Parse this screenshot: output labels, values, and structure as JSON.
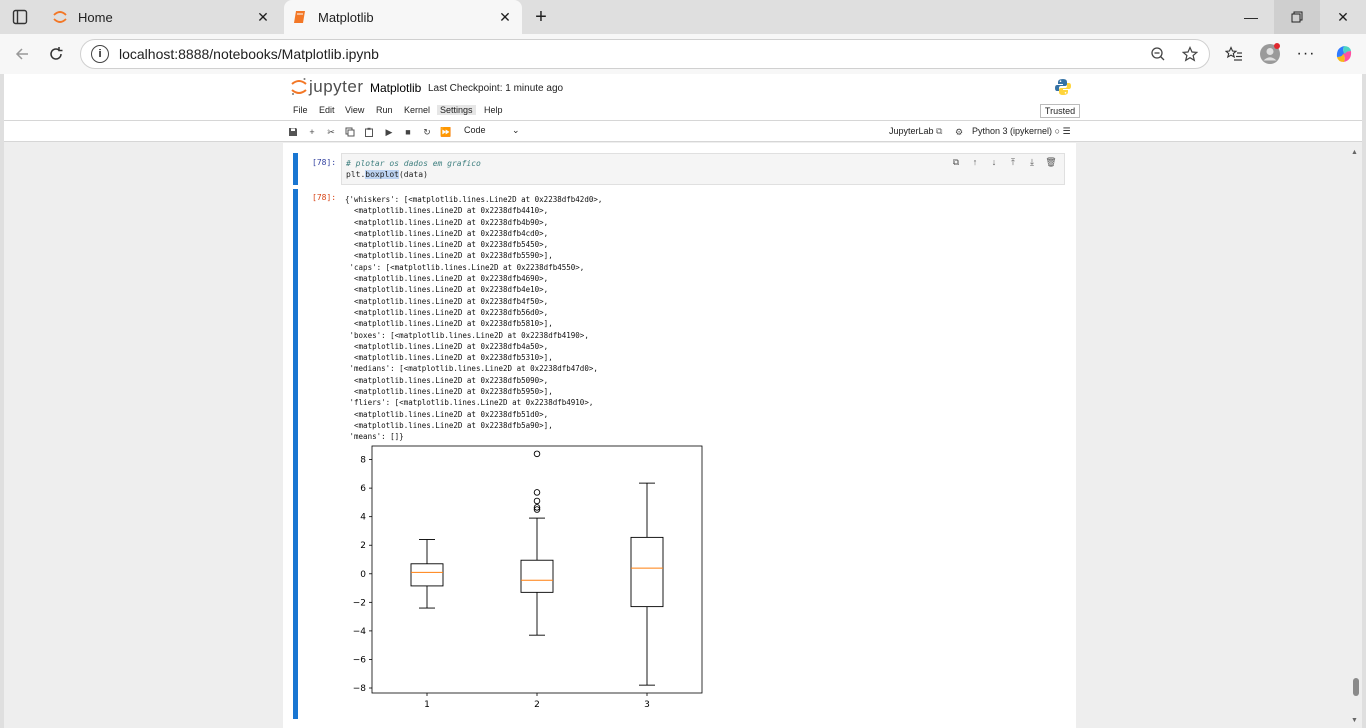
{
  "browser": {
    "tabs": [
      {
        "title": "Home",
        "active": false
      },
      {
        "title": "Matplotlib",
        "active": true
      }
    ],
    "url": "localhost:8888/notebooks/Matplotlib.ipynb"
  },
  "jupyter": {
    "logo_text": "jupyter",
    "notebook_title": "Matplotlib",
    "checkpoint": "Last Checkpoint: 1 minute ago",
    "menu": [
      "File",
      "Edit",
      "View",
      "Run",
      "Kernel",
      "Settings",
      "Help"
    ],
    "trusted": "Trusted",
    "cell_type": "Code",
    "jupyterlab_link": "JupyterLab",
    "kernel_name": "Python 3 (ipykernel)"
  },
  "cell": {
    "in_prompt": "[78]:",
    "comment": "# plotar os dados em grafico",
    "code_prefix": "plt.",
    "code_highlight": "boxplot",
    "code_suffix": "(data)",
    "out_prompt": "[78]:",
    "output_text": "{'whiskers': [<matplotlib.lines.Line2D at 0x2238dfb42d0>,\n  <matplotlib.lines.Line2D at 0x2238dfb4410>,\n  <matplotlib.lines.Line2D at 0x2238dfb4b90>,\n  <matplotlib.lines.Line2D at 0x2238dfb4cd0>,\n  <matplotlib.lines.Line2D at 0x2238dfb5450>,\n  <matplotlib.lines.Line2D at 0x2238dfb5590>],\n 'caps': [<matplotlib.lines.Line2D at 0x2238dfb4550>,\n  <matplotlib.lines.Line2D at 0x2238dfb4690>,\n  <matplotlib.lines.Line2D at 0x2238dfb4e10>,\n  <matplotlib.lines.Line2D at 0x2238dfb4f50>,\n  <matplotlib.lines.Line2D at 0x2238dfb56d0>,\n  <matplotlib.lines.Line2D at 0x2238dfb5810>],\n 'boxes': [<matplotlib.lines.Line2D at 0x2238dfb4190>,\n  <matplotlib.lines.Line2D at 0x2238dfb4a50>,\n  <matplotlib.lines.Line2D at 0x2238dfb5310>],\n 'medians': [<matplotlib.lines.Line2D at 0x2238dfb47d0>,\n  <matplotlib.lines.Line2D at 0x2238dfb5090>,\n  <matplotlib.lines.Line2D at 0x2238dfb5950>],\n 'fliers': [<matplotlib.lines.Line2D at 0x2238dfb4910>,\n  <matplotlib.lines.Line2D at 0x2238dfb51d0>,\n  <matplotlib.lines.Line2D at 0x2238dfb5a90>],\n 'means': []}"
  },
  "chart_data": {
    "type": "boxplot",
    "categories": [
      "1",
      "2",
      "3"
    ],
    "boxes": [
      {
        "label": "1",
        "whisker_low": -2.4,
        "q1": -0.85,
        "median": 0.1,
        "q3": 0.7,
        "whisker_high": 2.4,
        "fliers": []
      },
      {
        "label": "2",
        "whisker_low": -4.3,
        "q1": -1.3,
        "median": -0.45,
        "q3": 0.95,
        "whisker_high": 3.9,
        "fliers": [
          4.5,
          4.65,
          5.1,
          5.7,
          8.4
        ]
      },
      {
        "label": "3",
        "whisker_low": -7.8,
        "q1": -2.3,
        "median": 0.4,
        "q3": 2.55,
        "whisker_high": 6.35,
        "fliers": []
      }
    ],
    "yticks": [
      "−8",
      "−6",
      "−4",
      "−2",
      "0",
      "2",
      "4",
      "6",
      "8"
    ],
    "ytick_values": [
      -8,
      -6,
      -4,
      -2,
      0,
      2,
      4,
      6,
      8
    ],
    "ylim": [
      -8.35,
      8.95
    ],
    "xlim": [
      0.5,
      3.5
    ],
    "median_color": "#ff7f0e",
    "title": "",
    "xlabel": "",
    "ylabel": ""
  }
}
